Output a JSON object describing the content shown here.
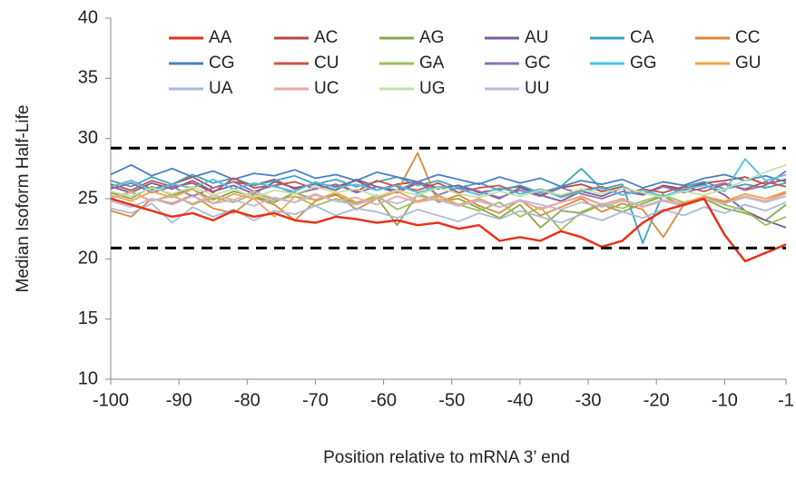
{
  "chart_data": {
    "type": "line",
    "x_label": "Position relative to mRNA 3’ end",
    "y_label": "Median Isoform Half-Life",
    "x": [
      -100,
      -97,
      -94,
      -91,
      -88,
      -85,
      -82,
      -79,
      -76,
      -73,
      -70,
      -67,
      -64,
      -61,
      -58,
      -55,
      -52,
      -49,
      -46,
      -43,
      -40,
      -37,
      -34,
      -31,
      -28,
      -25,
      -22,
      -19,
      -16,
      -13,
      -10,
      -7,
      -4,
      -1
    ],
    "xlim": [
      -100,
      -1
    ],
    "xticks": [
      -100,
      -90,
      -80,
      -70,
      -60,
      -50,
      -40,
      -30,
      -20,
      -10,
      -1
    ],
    "ylim": [
      10,
      40
    ],
    "yticks": [
      10,
      15,
      20,
      25,
      30,
      35,
      40
    ],
    "reference_lines": [
      29.2,
      20.9
    ],
    "series": [
      {
        "name": "AA",
        "color": "#e8311a",
        "values": [
          25,
          24.5,
          24,
          23.5,
          23.8,
          23.2,
          24,
          23.5,
          23.8,
          23.2,
          23,
          23.5,
          23.3,
          23,
          23.2,
          22.8,
          23,
          22.5,
          22.8,
          21.5,
          21.8,
          21.5,
          22.3,
          21.8,
          21,
          21.5,
          23,
          24,
          24.5,
          25,
          22,
          19.8,
          20.5,
          21.2
        ]
      },
      {
        "name": "AC",
        "color": "#b5473f",
        "values": [
          26,
          26.5,
          25.8,
          26.2,
          26.8,
          25.9,
          26.4,
          26.1,
          26.6,
          25.8,
          26.3,
          26,
          26.5,
          25.7,
          26.2,
          26.4,
          25.9,
          26.1,
          25.5,
          25.8,
          26,
          25.3,
          25.9,
          26.2,
          25.6,
          26,
          25.4,
          26.1,
          25.8,
          26.3,
          26.5,
          26.8,
          26.2,
          26.6
        ]
      },
      {
        "name": "AG",
        "color": "#8aa84a",
        "values": [
          25.5,
          25,
          26,
          25.3,
          25.8,
          24.9,
          25.6,
          25.2,
          24.7,
          25.5,
          24.9,
          25.3,
          24.6,
          25.1,
          22.8,
          25.4,
          24.8,
          25,
          24.2,
          23.4,
          24.5,
          22.6,
          24,
          23.8,
          24.5,
          23.9,
          24.6,
          25.2,
          24.4,
          25,
          24.2,
          23.8,
          23.2,
          24.5
        ]
      },
      {
        "name": "AU",
        "color": "#7b5c9e",
        "values": [
          26,
          25.5,
          26.3,
          25.8,
          26.5,
          25.6,
          26.1,
          25.4,
          26.4,
          25.9,
          26.2,
          25.7,
          26.6,
          26,
          25.5,
          26.3,
          25.8,
          26.1,
          25.6,
          25,
          25.9,
          25.3,
          24.8,
          25.6,
          25.2,
          25.9,
          25.4,
          26,
          25.7,
          26.2,
          25.3,
          24,
          23.2,
          22.6
        ]
      },
      {
        "name": "CA",
        "color": "#3ea3c4",
        "values": [
          26.5,
          26,
          26.8,
          26.2,
          27,
          26.3,
          26.7,
          26.1,
          26.5,
          26.9,
          26.2,
          26.6,
          26,
          26.4,
          26.8,
          26.1,
          26.5,
          25.9,
          26.3,
          25.7,
          26.1,
          25.5,
          26,
          27.5,
          25.8,
          26.2,
          21.3,
          25.5,
          26,
          26.4,
          25.8,
          26.2,
          25.9,
          26.3
        ]
      },
      {
        "name": "CC",
        "color": "#d9893a",
        "values": [
          24,
          23.5,
          25,
          24.6,
          25.3,
          24.2,
          23.8,
          25.1,
          24.5,
          23.2,
          24.8,
          25.4,
          24.1,
          25,
          25.6,
          28.8,
          24.7,
          25.3,
          24.4,
          23.8,
          24.9,
          23.6,
          24.3,
          25,
          23.9,
          24.6,
          24.1,
          21.8,
          24.5,
          25.1,
          24.7,
          25.2,
          24.8,
          25.5
        ]
      },
      {
        "name": "CG",
        "color": "#4a7fc1",
        "values": [
          27,
          27.8,
          26.9,
          27.5,
          26.8,
          27.3,
          26.6,
          27.1,
          26.9,
          27.4,
          26.7,
          27,
          26.5,
          27.2,
          26.8,
          26.4,
          27,
          26.6,
          26.2,
          26.8,
          26.3,
          26.7,
          26,
          26.5,
          26.2,
          26.6,
          25.9,
          26.4,
          26.1,
          26.7,
          27,
          26.5,
          26.9,
          26.4
        ]
      },
      {
        "name": "CU",
        "color": "#c9534a",
        "values": [
          26.2,
          25.7,
          26.5,
          26,
          26.3,
          25.5,
          26.7,
          25.9,
          26.1,
          26.4,
          25.8,
          26.2,
          25.6,
          26.5,
          26,
          25.7,
          26.3,
          25.5,
          25.9,
          26.1,
          25.4,
          25.8,
          25.2,
          25.7,
          26,
          25.3,
          25.8,
          25.5,
          26,
          25.6,
          26.2,
          25.8,
          26.4,
          26
        ]
      },
      {
        "name": "GA",
        "color": "#9dbf5a",
        "values": [
          25,
          25.6,
          24.8,
          25.3,
          24.5,
          25.1,
          24.7,
          25.4,
          24.9,
          25.2,
          24.4,
          25,
          24.6,
          25.3,
          24.1,
          24.8,
          25.2,
          24.5,
          24,
          24.7,
          23.5,
          24.3,
          22.4,
          23.9,
          24.6,
          24.2,
          24.8,
          25.3,
          24.7,
          25.1,
          24.5,
          24,
          22.8,
          23.5
        ]
      },
      {
        "name": "GC",
        "color": "#8c73b3",
        "values": [
          25.8,
          26.3,
          25.5,
          26,
          25.2,
          25.9,
          26.4,
          25.6,
          26.1,
          25.4,
          25.8,
          26.2,
          25.5,
          26,
          25.7,
          26.4,
          25.3,
          25.9,
          25.6,
          25.1,
          25.7,
          25.2,
          25.9,
          25.4,
          25,
          25.6,
          25.3,
          26,
          25.5,
          25.9,
          26.3,
          25.7,
          26.1,
          27.3
        ]
      },
      {
        "name": "GG",
        "color": "#4fc3df",
        "values": [
          26,
          26.5,
          25.7,
          26.2,
          25.9,
          26.6,
          25.8,
          26.3,
          26,
          25.6,
          26.4,
          25.9,
          26.2,
          25.7,
          26.1,
          25.5,
          26,
          25.8,
          25.3,
          25.9,
          25.4,
          25.8,
          25.1,
          25.6,
          25.9,
          25.3,
          25.7,
          25.2,
          25.8,
          26.1,
          25.6,
          28.3,
          26.5,
          27
        ]
      },
      {
        "name": "GU",
        "color": "#f2a34a",
        "values": [
          25.3,
          24.8,
          25.6,
          25.1,
          25.8,
          24.6,
          25.4,
          25,
          23.5,
          25.2,
          24.9,
          25.5,
          24.7,
          25.1,
          25.6,
          24.8,
          25.3,
          24.5,
          25,
          24.3,
          24.9,
          24.1,
          24.7,
          25.2,
          24.5,
          25,
          24.3,
          24.9,
          24.6,
          25.2,
          24.8,
          25.4,
          25,
          25.6
        ]
      },
      {
        "name": "UA",
        "color": "#a9b9db",
        "values": [
          24.2,
          23.8,
          24.6,
          23,
          24.3,
          23.5,
          24.1,
          23.2,
          24,
          23.7,
          24.4,
          23.6,
          24.2,
          23.9,
          23.4,
          24.1,
          23.6,
          23.1,
          23.8,
          23.3,
          24,
          23.5,
          23,
          23.7,
          23.2,
          23.9,
          23.4,
          24.1,
          23.6,
          24.3,
          23.8,
          24.5,
          24,
          24.7
        ]
      },
      {
        "name": "UC",
        "color": "#e8aaa8",
        "values": [
          25.1,
          25.5,
          24.8,
          25.2,
          24.6,
          25.3,
          24.9,
          25.6,
          25,
          24.7,
          25.4,
          24.8,
          25.1,
          24.5,
          25.2,
          24.7,
          25,
          24.4,
          24.9,
          24.3,
          24.8,
          24.2,
          24.7,
          25.1,
          24.5,
          24.9,
          24.3,
          24.8,
          24.4,
          25,
          24.6,
          25.2,
          24.8,
          25.4
        ]
      },
      {
        "name": "UG",
        "color": "#c6dfa8",
        "values": [
          25.6,
          25.2,
          25.9,
          25.4,
          26,
          25.3,
          25.8,
          25.1,
          25.7,
          25.4,
          26,
          25.5,
          25.8,
          25.2,
          25.7,
          25.3,
          25.9,
          25.4,
          25.1,
          25.6,
          25.2,
          25.7,
          25.3,
          25.8,
          25.4,
          25.9,
          25.5,
          25.1,
          25.6,
          25.3,
          25.8,
          26.5,
          27.2,
          27.8
        ]
      },
      {
        "name": "UU",
        "color": "#c1b7d9",
        "values": [
          24.8,
          24.3,
          25,
          24.5,
          25.2,
          24.6,
          24.9,
          24.4,
          25.1,
          24.7,
          25.3,
          24.8,
          24.5,
          25,
          24.6,
          25.2,
          24.9,
          24.4,
          24.8,
          24.3,
          24.9,
          24.5,
          24.1,
          24.7,
          24.3,
          24.8,
          24.4,
          24.9,
          24.5,
          25,
          24.6,
          25.1,
          24.7,
          25.2
        ]
      }
    ],
    "legend_columns": 6
  }
}
